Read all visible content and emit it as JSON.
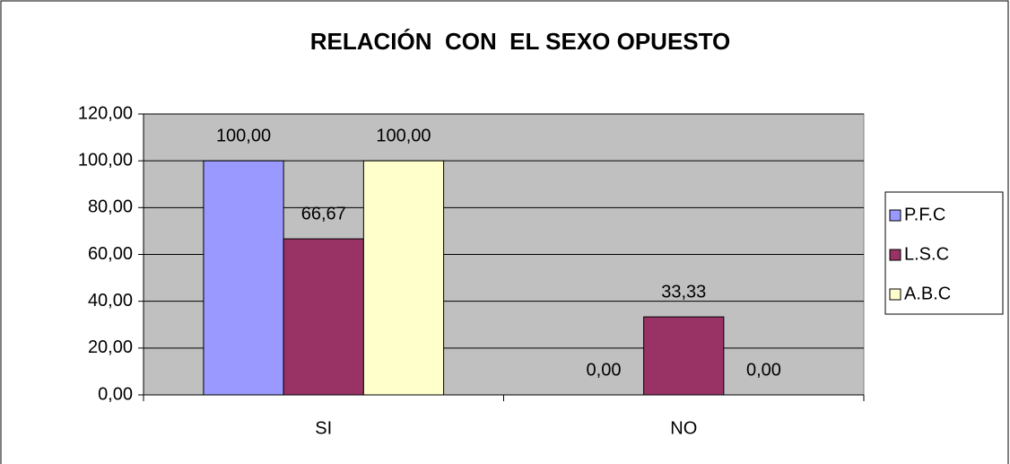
{
  "chart_data": {
    "type": "bar",
    "title": "RELACIÓN  CON  EL SEXO OPUESTO",
    "categories": [
      "SI",
      "NO"
    ],
    "series": [
      {
        "name": "P.F.C",
        "color": "#9999ff",
        "values": [
          100,
          0
        ],
        "value_labels": [
          "100,00",
          "0,00"
        ]
      },
      {
        "name": "L.S.C",
        "color": "#993366",
        "values": [
          66.67,
          33.33
        ],
        "value_labels": [
          "66,67",
          "33,33"
        ]
      },
      {
        "name": "A.B.C",
        "color": "#ffffcc",
        "values": [
          100,
          0
        ],
        "value_labels": [
          "100,00",
          "0,00"
        ]
      }
    ],
    "ylim": [
      0,
      120
    ],
    "yticks": [
      {
        "value": 0,
        "label": "0,00"
      },
      {
        "value": 20,
        "label": "20,00"
      },
      {
        "value": 40,
        "label": "40,00"
      },
      {
        "value": 60,
        "label": "60,00"
      },
      {
        "value": 80,
        "label": "80,00"
      },
      {
        "value": 100,
        "label": "100,00"
      },
      {
        "value": 120,
        "label": "120,00"
      }
    ],
    "grid": true,
    "legend": "right",
    "plot_background": "#c0c0c0"
  }
}
